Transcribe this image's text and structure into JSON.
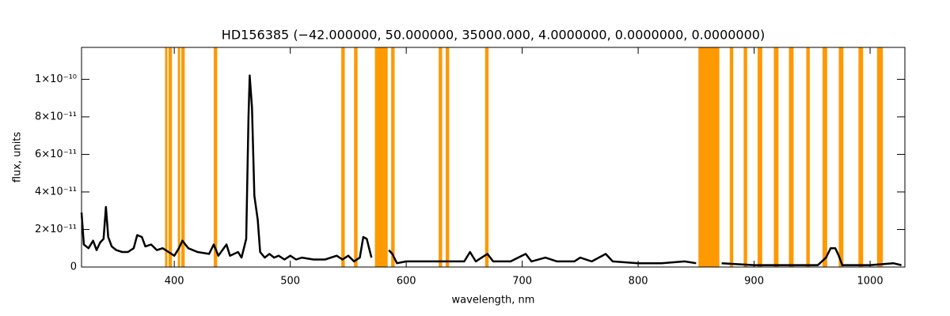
{
  "chart_data": {
    "type": "line",
    "title": "HD156385   (−42.000000, 50.000000, 35000.000, 4.0000000, 0.0000000, 0.0000000)",
    "x_label": "wavelength, nm",
    "y_label": "flux, units",
    "xlim": [
      320,
      1030
    ],
    "ylim": [
      0,
      1.17e-10
    ],
    "xticks": [
      400,
      500,
      600,
      700,
      800,
      900,
      1000
    ],
    "yticks": [
      0,
      {
        "value": 2e-11,
        "label": "2×10⁻¹¹"
      },
      {
        "value": 4e-11,
        "label": "4×10⁻¹¹"
      },
      {
        "value": 6e-11,
        "label": "6×10⁻¹¹"
      },
      {
        "value": 8e-11,
        "label": "8×10⁻¹¹"
      },
      {
        "value": 1e-10,
        "label": "1×10⁻¹⁰"
      }
    ],
    "color": "#000000",
    "band_color": "#ff9900",
    "bands": [
      [
        392,
        394
      ],
      [
        395,
        398
      ],
      [
        403,
        405
      ],
      [
        406,
        409
      ],
      [
        434,
        437
      ],
      [
        544,
        547
      ],
      [
        555,
        558
      ],
      [
        573,
        584
      ],
      [
        587,
        590
      ],
      [
        628,
        631
      ],
      [
        634,
        637
      ],
      [
        668,
        671
      ],
      [
        852,
        870
      ],
      [
        879,
        882
      ],
      [
        891,
        894
      ],
      [
        903,
        907
      ],
      [
        917,
        921
      ],
      [
        930,
        934
      ],
      [
        945,
        948
      ],
      [
        959,
        963
      ],
      [
        973,
        977
      ],
      [
        990,
        994
      ],
      [
        1006,
        1011
      ]
    ],
    "x": [
      320,
      322,
      326,
      330,
      333,
      336,
      339,
      341,
      343,
      346,
      350,
      355,
      360,
      365,
      368,
      372,
      375,
      380,
      385,
      390,
      395,
      400,
      404,
      407,
      412,
      420,
      430,
      434,
      438,
      445,
      448,
      455,
      458,
      462,
      464,
      465,
      467,
      469,
      472,
      474,
      478,
      482,
      486,
      490,
      495,
      500,
      505,
      510,
      520,
      530,
      540,
      545,
      550,
      555,
      560,
      563,
      566,
      570,
      578,
      585,
      588,
      592,
      600,
      620,
      640,
      650,
      655,
      660,
      665,
      670,
      675,
      690,
      703,
      708,
      720,
      730,
      745,
      750,
      760,
      772,
      778,
      800,
      820,
      840,
      850,
      860,
      872,
      900,
      930,
      955,
      962,
      966,
      970,
      973,
      976,
      1000,
      1020,
      1027
    ],
    "values": [
      2.9e-11,
      1.2e-11,
      1e-11,
      1.4e-11,
      9e-12,
      1.3e-11,
      1.5e-11,
      3.2e-11,
      1.6e-11,
      1.1e-11,
      9e-12,
      8e-12,
      8e-12,
      1e-11,
      1.7e-11,
      1.6e-11,
      1.1e-11,
      1.2e-11,
      9e-12,
      1e-11,
      8e-12,
      6e-12,
      1e-11,
      1.4e-11,
      1e-11,
      8e-12,
      7e-12,
      1.2e-11,
      6e-12,
      1.2e-11,
      6e-12,
      8e-12,
      5e-12,
      1.5e-11,
      8e-11,
      1.02e-10,
      8.5e-11,
      3.8e-11,
      2.5e-11,
      8e-12,
      5e-12,
      7e-12,
      5e-12,
      6e-12,
      4e-12,
      6e-12,
      4e-12,
      5e-12,
      4e-12,
      4e-12,
      6e-12,
      4e-12,
      6e-12,
      3e-12,
      5e-12,
      1.6e-11,
      1.5e-11,
      5e-12,
      null,
      9e-12,
      7e-12,
      2e-12,
      3e-12,
      3e-12,
      3e-12,
      3e-12,
      8e-12,
      3e-12,
      5e-12,
      7e-12,
      3e-12,
      3e-12,
      7e-12,
      3e-12,
      5e-12,
      3e-12,
      3e-12,
      5e-12,
      3e-12,
      7e-12,
      3e-12,
      2e-12,
      2e-12,
      3e-12,
      2e-12,
      null,
      2e-12,
      1e-12,
      1e-12,
      1e-12,
      5e-12,
      1e-11,
      1e-11,
      6e-12,
      1e-12,
      1e-12,
      2e-12,
      1e-12
    ]
  }
}
